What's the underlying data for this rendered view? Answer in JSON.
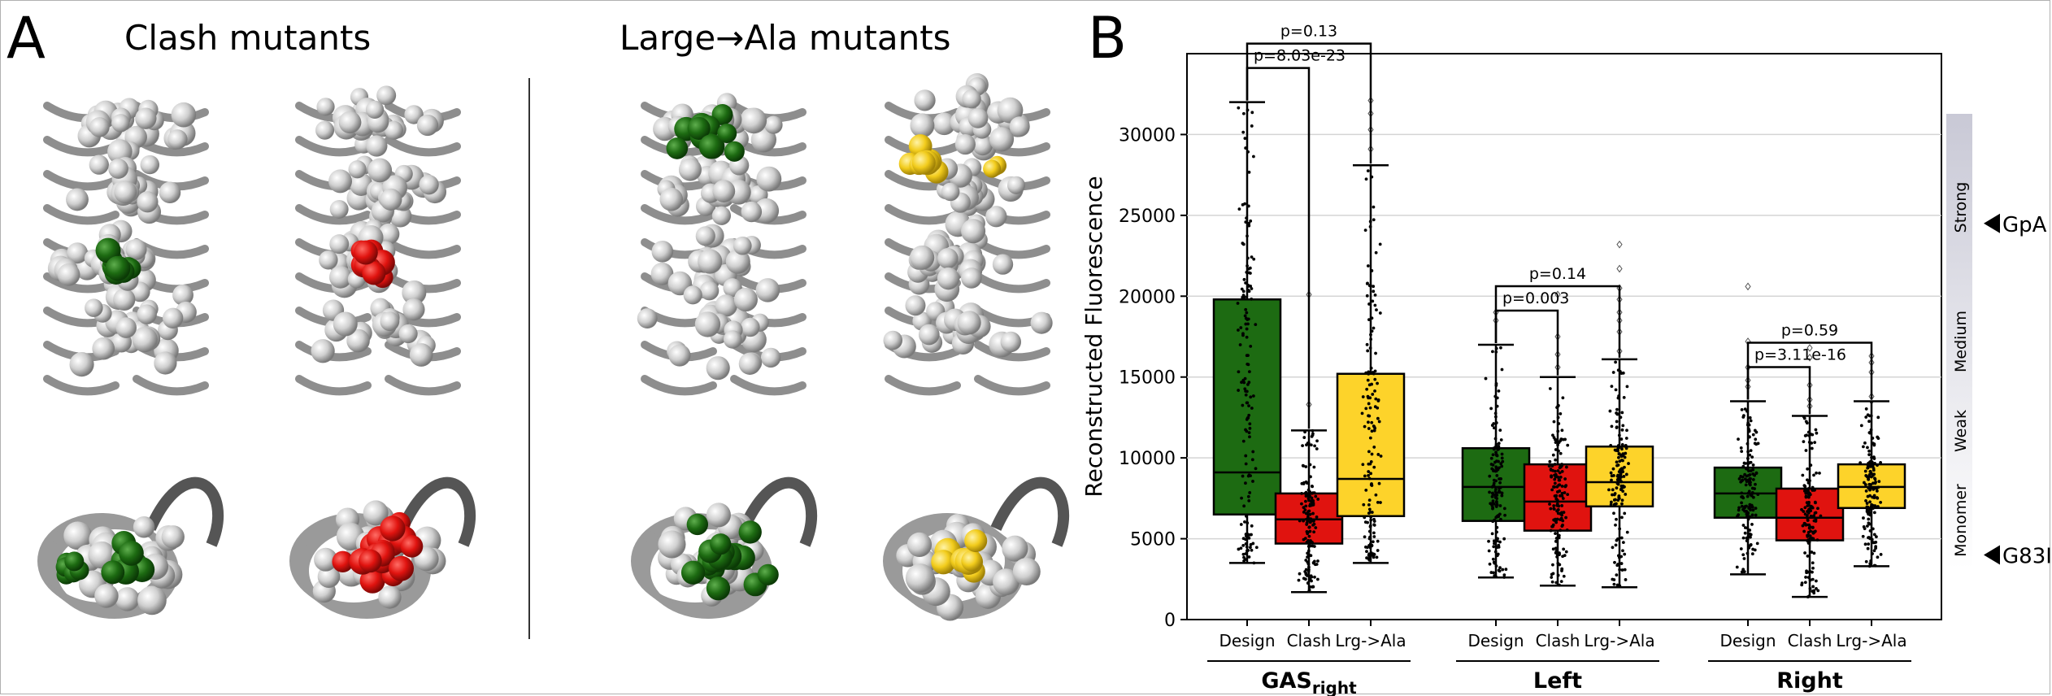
{
  "panel_a": {
    "letter": "A",
    "left_title": "Clash mutants",
    "right_title": "Large→Ala mutants",
    "structures": [
      {
        "name": "clash-design",
        "highlight": "#1d6b12"
      },
      {
        "name": "clash-mutant",
        "highlight": "#e0130f"
      },
      {
        "name": "large-ala-design",
        "highlight": "#1d6b12"
      },
      {
        "name": "large-ala-mutant",
        "highlight": "#f2cc1c"
      }
    ]
  },
  "panel_b": {
    "letter": "B",
    "strength_labels": [
      "Strong",
      "Medium",
      "Weak",
      "Monomer"
    ],
    "references": [
      {
        "label": "GpA",
        "value": 24500
      },
      {
        "label": "G83I",
        "value": 4000
      }
    ]
  },
  "colors": {
    "design": "#1d6b12",
    "clash": "#e0130f",
    "large_ala": "#fdd32a"
  },
  "chart_data": {
    "type": "box",
    "ylabel": "Reconstructed Fluorescence",
    "ylim": [
      0,
      35000
    ],
    "yticks": [
      0,
      5000,
      10000,
      15000,
      20000,
      25000,
      30000
    ],
    "grid": "horizontal",
    "categories": [
      "Design",
      "Clash",
      "Lrg->Ala"
    ],
    "groups": [
      {
        "name": "GAS",
        "name_sub": "right",
        "boxes": [
          {
            "category": "Design",
            "whisker_low": 3500,
            "q1": 6500,
            "median": 9100,
            "q3": 19800,
            "whisker_high": 32000,
            "outliers": []
          },
          {
            "category": "Clash",
            "whisker_low": 1700,
            "q1": 4700,
            "median": 6200,
            "q3": 7800,
            "whisker_high": 11700,
            "outliers": [
              13300,
              20100
            ]
          },
          {
            "category": "Lrg->Ala",
            "whisker_low": 3500,
            "q1": 6400,
            "median": 8700,
            "q3": 15200,
            "whisker_high": 28100,
            "outliers": [
              29100,
              30300,
              31300,
              32100
            ]
          }
        ]
      },
      {
        "name": "Left",
        "name_sub": "",
        "boxes": [
          {
            "category": "Design",
            "whisker_low": 2600,
            "q1": 6100,
            "median": 8200,
            "q3": 10600,
            "whisker_high": 17000,
            "outliers": [
              18500,
              19000
            ]
          },
          {
            "category": "Clash",
            "whisker_low": 2100,
            "q1": 5500,
            "median": 7300,
            "q3": 9600,
            "whisker_high": 15000,
            "outliers": [
              15600,
              16400,
              17500,
              20100
            ]
          },
          {
            "category": "Lrg->Ala",
            "whisker_low": 2000,
            "q1": 7000,
            "median": 8500,
            "q3": 10700,
            "whisker_high": 16100,
            "outliers": [
              16600,
              17800,
              18500,
              19000,
              19800,
              20500,
              21700,
              23200
            ]
          }
        ]
      },
      {
        "name": "Right",
        "name_sub": "",
        "boxes": [
          {
            "category": "Design",
            "whisker_low": 2800,
            "q1": 6300,
            "median": 7800,
            "q3": 9400,
            "whisker_high": 13500,
            "outliers": [
              14400,
              14800,
              15600,
              17200,
              20600
            ]
          },
          {
            "category": "Clash",
            "whisker_low": 1400,
            "q1": 4900,
            "median": 6300,
            "q3": 8100,
            "whisker_high": 12600,
            "outliers": [
              13200,
              13600,
              14500,
              16200,
              16800
            ]
          },
          {
            "category": "Lrg->Ala",
            "whisker_low": 3300,
            "q1": 6900,
            "median": 8200,
            "q3": 9600,
            "whisker_high": 13500,
            "outliers": [
              13800,
              15300,
              15900,
              16300
            ]
          }
        ]
      }
    ],
    "comparisons": [
      {
        "group": "GAS",
        "from": "Design",
        "to": "Clash",
        "label": "p=8.03e-23",
        "level": 1
      },
      {
        "group": "GAS",
        "from": "Design",
        "to": "Lrg->Ala",
        "label": "p=0.13",
        "level": 2
      },
      {
        "group": "Left",
        "from": "Design",
        "to": "Clash",
        "label": "p=0.003",
        "level": 1
      },
      {
        "group": "Left",
        "from": "Design",
        "to": "Lrg->Ala",
        "label": "p=0.14",
        "level": 2
      },
      {
        "group": "Right",
        "from": "Design",
        "to": "Clash",
        "label": "p=3.11e-16",
        "level": 1
      },
      {
        "group": "Right",
        "from": "Design",
        "to": "Lrg->Ala",
        "label": "p=0.59",
        "level": 2
      }
    ]
  }
}
